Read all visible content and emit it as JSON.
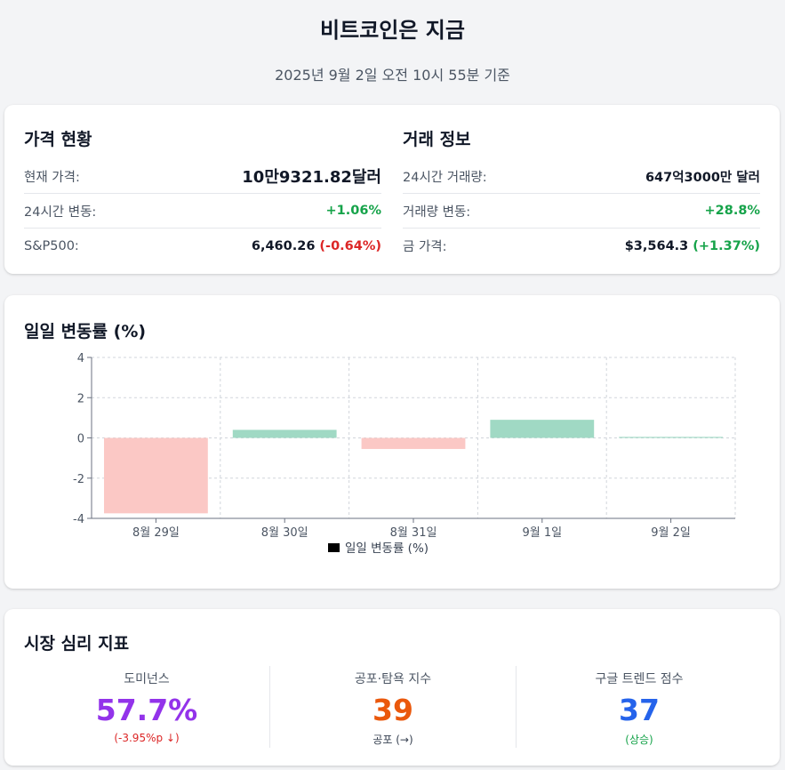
{
  "page": {
    "title": "비트코인은 지금",
    "subtitle": "2025년 9월 2일 오전 10시 55분 기준"
  },
  "price_status": {
    "heading": "가격 현황",
    "rows": [
      {
        "label": "현재 가격:",
        "value": "10만9321.82달러"
      },
      {
        "label": "24시간 변동:",
        "value": "+1.06%"
      },
      {
        "label": "S&P500:",
        "value": "6,460.26",
        "change": "(-0.64%)"
      }
    ]
  },
  "trade_info": {
    "heading": "거래 정보",
    "rows": [
      {
        "label": "24시간 거래량:",
        "value": "647억3000만 달러"
      },
      {
        "label": "거래량 변동:",
        "value": "+28.8%"
      },
      {
        "label": "금 가격:",
        "value": "$3,564.3",
        "change": "(+1.37%)"
      }
    ]
  },
  "chart_section": {
    "heading": "일일 변동률 (%)"
  },
  "chart_data": {
    "type": "bar",
    "categories": [
      "8월 29일",
      "8월 30일",
      "8월 31일",
      "9월 1일",
      "9월 2일"
    ],
    "values": [
      -3.75,
      0.4,
      -0.55,
      0.9,
      0.05
    ],
    "ylim": [
      -4,
      4
    ],
    "yticks": [
      "4",
      "2",
      "0",
      "-2",
      "-4"
    ],
    "legend": "일일 변동률 (%)",
    "legend_position": "bottom",
    "grid": true,
    "colors": {
      "positive": "#a0d9c4",
      "negative": "#fbc8c5",
      "legend": "#000000"
    }
  },
  "sentiment": {
    "heading": "시장 심리 지표",
    "metrics": [
      {
        "label": "도미넌스",
        "value": "57.7%",
        "sub": "(-3.95%p ↓)",
        "color": "#9333ea",
        "sub_color": "#dc2626"
      },
      {
        "label": "공포·탐욕 지수",
        "value": "39",
        "sub": "공포 (→)",
        "color": "#ea580c",
        "sub_color": "#374151"
      },
      {
        "label": "구글 트렌드 점수",
        "value": "37",
        "sub": "(상승)",
        "color": "#2563eb",
        "sub_color": "#16a34a"
      }
    ]
  }
}
